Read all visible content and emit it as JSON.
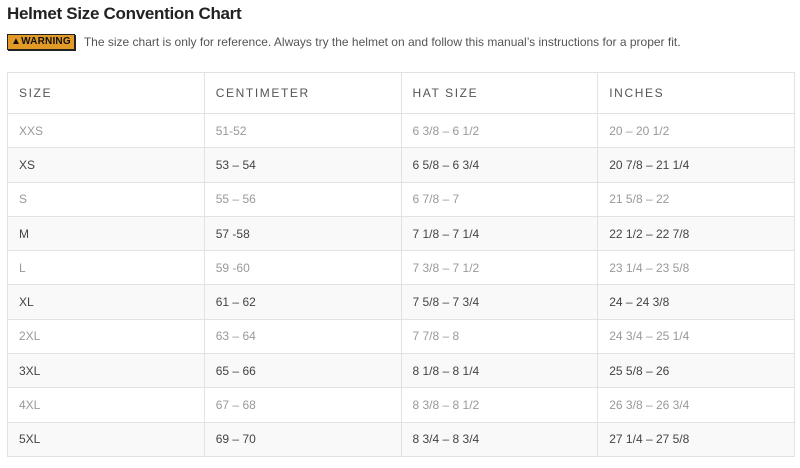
{
  "title": "Helmet Size Convention Chart",
  "warning": {
    "badge": "▲WARNING",
    "text": "The size chart is only for reference. Always try the helmet on and follow this manual’s instructions for a proper fit.",
    "badge_color": "#e09a25"
  },
  "table": {
    "headers": [
      "SIZE",
      "CENTIMETER",
      "HAT SIZE",
      "INCHES"
    ],
    "rows": [
      [
        "XXS",
        "51-52",
        "6 3/8 – 6 1/2",
        "20 – 20 1/2"
      ],
      [
        "XS",
        "53 – 54",
        "6 5/8 – 6 3/4",
        "20 7/8 – 21 1/4"
      ],
      [
        "S",
        "55 – 56",
        "6 7/8 – 7",
        "21 5/8 – 22"
      ],
      [
        "M",
        "57 -58",
        "7 1/8 – 7 1/4",
        "22 1/2 – 22 7/8"
      ],
      [
        "L",
        "59 -60",
        "7 3/8 – 7 1/2",
        "23 1/4 – 23 5/8"
      ],
      [
        "XL",
        "61 – 62",
        "7 5/8 – 7 3/4",
        "24 – 24 3/8"
      ],
      [
        "2XL",
        "63 – 64",
        "7 7/8 – 8",
        "24 3/4 – 25 1/4"
      ],
      [
        "3XL",
        "65 – 66",
        "8 1/8 – 8 1/4",
        "25 5/8 – 26"
      ],
      [
        "4XL",
        "67 – 68",
        "8 3/8 – 8 1/2",
        "26 3/8 – 26 3/4"
      ],
      [
        "5XL",
        "69 – 70",
        "8 3/4 – 8 3/4",
        "27 1/4 – 27 5/8"
      ]
    ]
  }
}
